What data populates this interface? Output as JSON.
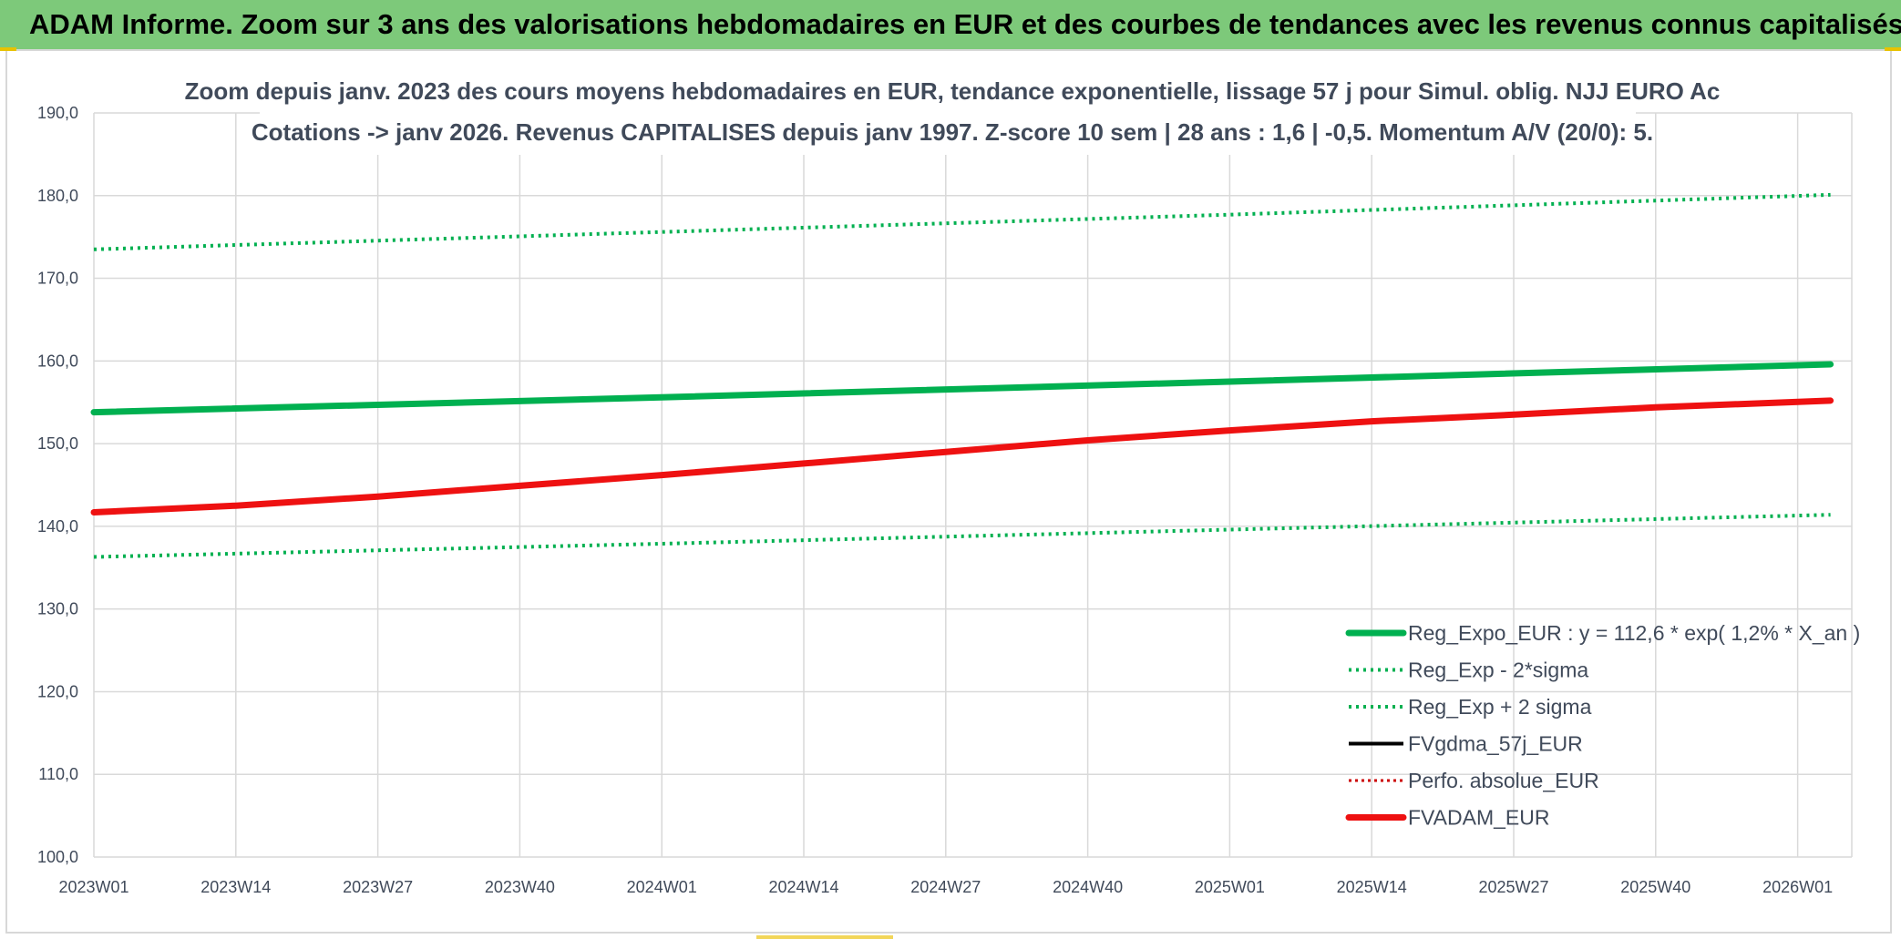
{
  "page": {
    "banner_title": "ADAM Informe. Zoom sur 3 ans des valorisations hebdomadaires en EUR et des courbes de tendances avec les revenus connus capitalisés"
  },
  "colors": {
    "banner_bg": "#7dc97a",
    "green": "#00b050",
    "red": "#ee1111",
    "black": "#000000",
    "grid": "#d9d9d9",
    "text": "#404a5a"
  },
  "chart_data": {
    "type": "line",
    "title": "Zoom depuis janv. 2023 des cours moyens hebdomadaires en EUR, tendance exponentielle, lissage 57 j pour Simul. oblig. NJJ EURO Ac",
    "subtitle": "Cotations -> janv 2026. Revenus CAPITALISES depuis janv 1997. Z-score 10 sem | 28 ans : 1,6 | -0,5. Momentum A/V (20/0): 5.",
    "xlabel": "",
    "ylabel": "",
    "x_ticks": [
      "2023W01",
      "2023W14",
      "2023W27",
      "2023W40",
      "2024W01",
      "2024W14",
      "2024W27",
      "2024W40",
      "2025W01",
      "2025W14",
      "2025W27",
      "2025W40",
      "2026W01"
    ],
    "x_range": [
      "2023W01",
      "2026W04"
    ],
    "ylim": [
      100,
      190
    ],
    "y_ticks": [
      "100,0",
      "110,0",
      "120,0",
      "130,0",
      "140,0",
      "150,0",
      "160,0",
      "170,0",
      "180,0",
      "190,0"
    ],
    "grid": true,
    "legend_position": "bottom-right",
    "series": [
      {
        "name": "Reg_Expo_EUR : y = 112,6 * exp( 1,2% *  X_an )",
        "style": "solid-thick",
        "color": "#00b050",
        "x": [
          "2023W01",
          "2024W01",
          "2025W01",
          "2026W04"
        ],
        "values": [
          153.8,
          155.6,
          157.5,
          159.6
        ]
      },
      {
        "name": "Reg_Exp - 2*sigma",
        "style": "dotted",
        "color": "#00b050",
        "x": [
          "2023W01",
          "2024W01",
          "2025W01",
          "2026W04"
        ],
        "values": [
          136.3,
          137.9,
          139.6,
          141.4
        ]
      },
      {
        "name": "Reg_Exp + 2 sigma",
        "style": "dotted",
        "color": "#00b050",
        "x": [
          "2023W01",
          "2024W01",
          "2025W01",
          "2026W04"
        ],
        "values": [
          173.5,
          175.6,
          177.7,
          180.1
        ]
      },
      {
        "name": "FVgdma_57j_EUR",
        "style": "solid",
        "color": "#000000",
        "x": [],
        "values": []
      },
      {
        "name": "Perfo. absolue_EUR",
        "style": "dotted-thin",
        "color": "#cc0000",
        "x": [],
        "values": []
      },
      {
        "name": "FVADAM_EUR",
        "style": "solid-thick",
        "color": "#ee1111",
        "x": [
          "2023W01",
          "2023W14",
          "2023W27",
          "2023W40",
          "2024W01",
          "2024W14",
          "2024W27",
          "2024W40",
          "2025W01",
          "2025W14",
          "2025W27",
          "2025W40",
          "2026W04"
        ],
        "values": [
          141.7,
          142.5,
          143.6,
          144.9,
          146.2,
          147.6,
          149.0,
          150.4,
          151.6,
          152.7,
          153.5,
          154.4,
          155.2
        ]
      }
    ]
  }
}
